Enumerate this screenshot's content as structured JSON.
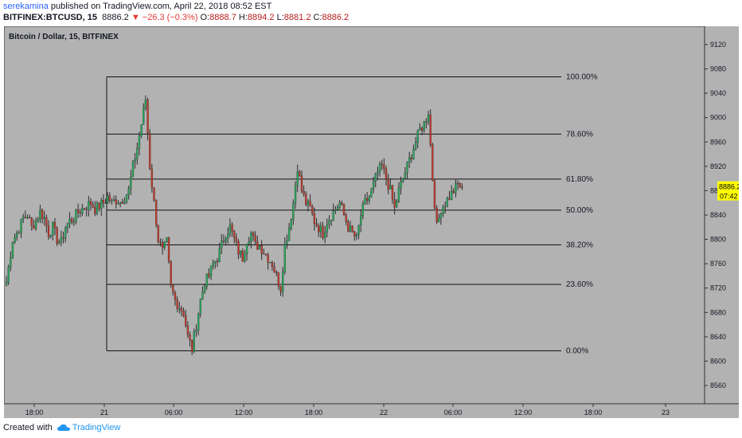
{
  "header": {
    "author": "serekamina",
    "published_text": " published on TradingView.com, April 22, 2018 08:52 EST",
    "symbol": "BITFINEX:BTCUSD, 15",
    "last": "8886.2",
    "change": "−26.3 (−0.3%)",
    "o_label": "O:",
    "o": "8888.7",
    "h_label": "H:",
    "h": "8894.2",
    "l_label": "L:",
    "l": "8881.2",
    "c_label": "C:",
    "c": "8886.2"
  },
  "footer": {
    "created_with": "Created with",
    "brand": "TradingView",
    "logo_icon": "tradingview-cloud-icon"
  },
  "colors": {
    "background": "#b2b2b2",
    "up": "#26a65b",
    "down": "#c0392b",
    "wick": "#2b2b2b",
    "fib": "#111111",
    "price_tag": "#ffff00"
  },
  "chart_data": {
    "type": "candlestick",
    "title": "Bitcoin / Dollar, 15, BITFINEX",
    "y_ticks": [
      9120,
      9080,
      9040,
      9000,
      8960,
      8920,
      8880,
      8840,
      8800,
      8760,
      8720,
      8680,
      8640,
      8600,
      8560
    ],
    "ylim": [
      8530,
      9150
    ],
    "x_ticks": [
      "18:00",
      "21",
      "06:00",
      "12:00",
      "18:00",
      "22",
      "06:00",
      "12:00",
      "18:00",
      "23"
    ],
    "last_price": "8886.2",
    "countdown": "07:42",
    "fib_levels": [
      {
        "label": "100.00%",
        "price": 9067
      },
      {
        "label": "78.60%",
        "price": 8973
      },
      {
        "label": "61.80%",
        "price": 8899
      },
      {
        "label": "50.00%",
        "price": 8848
      },
      {
        "label": "38.20%",
        "price": 8791
      },
      {
        "label": "23.60%",
        "price": 8726
      },
      {
        "label": "0.00%",
        "price": 8617
      }
    ],
    "close_path": [
      8730,
      8800,
      8810,
      8835,
      8840,
      8820,
      8830,
      8845,
      8835,
      8810,
      8820,
      8800,
      8795,
      8820,
      8830,
      8835,
      8845,
      8850,
      8855,
      8860,
      8850,
      8855,
      8860,
      8870,
      8860,
      8865,
      8862,
      8870,
      8880,
      8920,
      8950,
      8990,
      9030,
      8920,
      8860,
      8800,
      8780,
      8795,
      8720,
      8700,
      8690,
      8680,
      8640,
      8620,
      8660,
      8700,
      8730,
      8740,
      8760,
      8770,
      8790,
      8810,
      8820,
      8800,
      8780,
      8770,
      8800,
      8810,
      8790,
      8790,
      8780,
      8770,
      8760,
      8740,
      8720,
      8790,
      8820,
      8860,
      8920,
      8880,
      8860,
      8850,
      8830,
      8820,
      8810,
      8830,
      8840,
      8850,
      8860,
      8840,
      8820,
      8810,
      8800,
      8840,
      8860,
      8870,
      8890,
      8910,
      8920,
      8900,
      8880,
      8850,
      8880,
      8900,
      8920,
      8940,
      8960,
      8980,
      8990,
      9010,
      8900,
      8820,
      8850,
      8860,
      8870,
      8880,
      8890,
      8886
    ],
    "close_x": [
      0,
      3,
      5,
      8,
      10,
      12,
      14,
      16,
      18,
      20,
      22,
      24,
      26,
      28,
      30,
      32,
      34,
      36,
      38,
      40,
      42,
      44,
      46,
      48,
      50,
      52,
      54,
      56,
      58,
      60,
      62,
      64,
      66,
      68,
      70,
      72,
      74,
      76,
      78,
      80,
      82,
      84,
      86,
      88,
      90,
      92,
      94,
      96,
      98,
      100,
      102,
      104,
      106,
      108,
      110,
      112,
      114,
      116,
      118,
      120,
      122,
      124,
      126,
      128,
      130,
      132,
      134,
      136,
      138,
      140,
      142,
      144,
      146,
      148,
      150,
      152,
      154,
      156,
      158,
      160,
      162,
      164,
      166,
      168,
      170,
      172,
      174,
      176,
      178,
      180,
      182,
      184,
      186,
      188,
      190,
      192,
      194,
      196,
      198,
      200,
      202,
      204,
      206,
      208,
      210,
      212,
      214,
      216
    ]
  }
}
